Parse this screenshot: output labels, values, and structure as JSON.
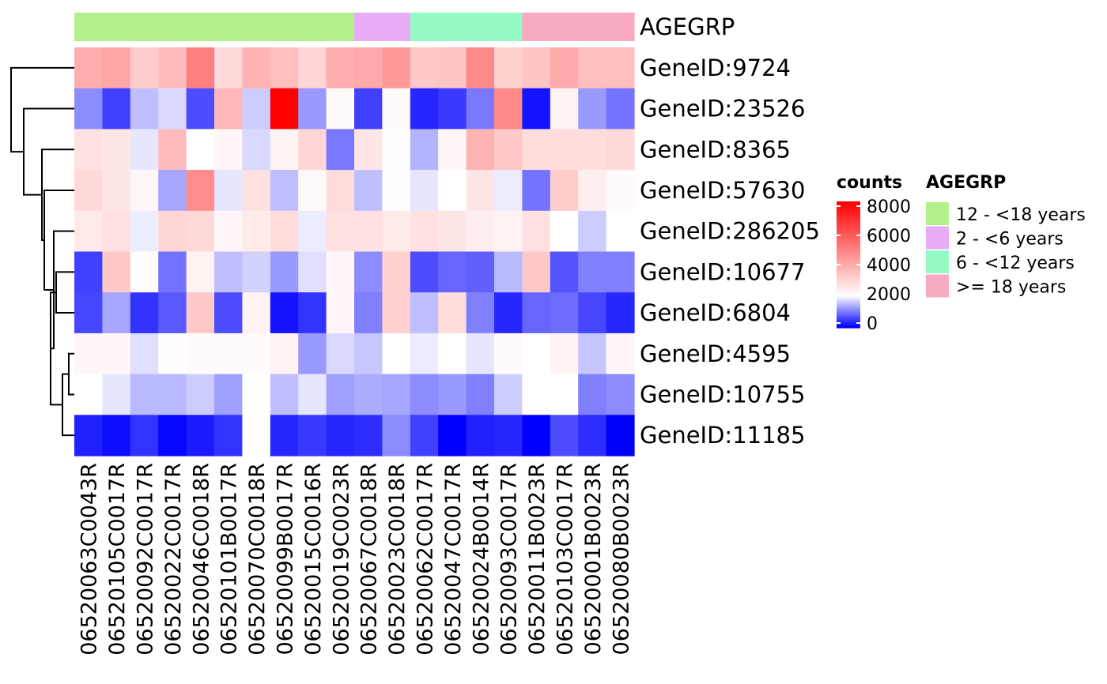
{
  "chart_data": {
    "type": "heatmap",
    "legend_title": "counts",
    "color_scale": {
      "stops": [
        {
          "value": 0,
          "color": "#0000FF"
        },
        {
          "value": 2000,
          "color": "#FFFFFF"
        },
        {
          "value": 8000,
          "color": "#FF0000"
        }
      ],
      "tick_labels": [
        "8000",
        "6000",
        "4000",
        "2000",
        "0"
      ],
      "tick_values": [
        8000,
        6000,
        4000,
        2000,
        0
      ]
    },
    "columns": [
      "06520063C0043R",
      "06520105C0017R",
      "06520092C0017R",
      "06520022C0017R",
      "06520046C0018R",
      "06520101B0017R",
      "06520070C0018R",
      "06520099B0017R",
      "06520015C0016R",
      "06520019C0023R",
      "06520067C0018R",
      "06520023C0018R",
      "06520062C0017R",
      "06520047C0017R",
      "06520024B0014R",
      "06520093C0017R",
      "06520011B0023R",
      "06520103C0017R",
      "06520001B0023R",
      "06520080B0023R"
    ],
    "rows": [
      "GeneID:9724",
      "GeneID:23526",
      "GeneID:8365",
      "GeneID:57630",
      "GeneID:286205",
      "GeneID:10677",
      "GeneID:6804",
      "GeneID:4595",
      "GeneID:10755",
      "GeneID:11185"
    ],
    "values": [
      [
        3900,
        4100,
        3200,
        3600,
        5000,
        2900,
        3800,
        3500,
        3000,
        3900,
        4000,
        4400,
        3300,
        3400,
        4800,
        3100,
        3400,
        4000,
        3500,
        3500
      ],
      [
        1100,
        500,
        1500,
        1700,
        600,
        3700,
        1600,
        8000,
        1200,
        2100,
        500,
        2100,
        300,
        450,
        950,
        4800,
        150,
        2300,
        1200,
        900
      ],
      [
        2700,
        2600,
        1800,
        3600,
        2000,
        2200,
        1700,
        2300,
        3000,
        950,
        2600,
        2050,
        1400,
        2200,
        3800,
        3300,
        2800,
        2800,
        2800,
        2900
      ],
      [
        2900,
        2600,
        2200,
        1300,
        4700,
        1800,
        2700,
        1500,
        2150,
        2800,
        1500,
        2050,
        1800,
        2000,
        2600,
        1850,
        900,
        3200,
        2400,
        2100
      ],
      [
        2500,
        2700,
        1850,
        3000,
        2900,
        2200,
        2500,
        2800,
        1850,
        2700,
        2700,
        2500,
        2700,
        2600,
        2400,
        2300,
        2700,
        2000,
        1600,
        2000
      ],
      [
        500,
        3300,
        2050,
        900,
        2300,
        1500,
        1650,
        1200,
        1750,
        2200,
        1100,
        3100,
        600,
        800,
        750,
        1450,
        3300,
        650,
        1000,
        1000
      ],
      [
        550,
        1300,
        400,
        700,
        3300,
        600,
        2300,
        150,
        400,
        2200,
        1000,
        3100,
        1500,
        2800,
        1000,
        300,
        800,
        850,
        550,
        300
      ],
      [
        2200,
        2200,
        1750,
        2050,
        2100,
        2100,
        2100,
        2300,
        1200,
        1700,
        1550,
        2000,
        1850,
        2000,
        1800,
        2100,
        2000,
        2300,
        1550,
        2200
      ],
      [
        2000,
        1800,
        1450,
        1450,
        1600,
        1250,
        2000,
        1500,
        1800,
        1250,
        1350,
        1300,
        1100,
        1200,
        1000,
        1600,
        2000,
        2000,
        1000,
        1100
      ],
      [
        250,
        100,
        400,
        50,
        200,
        400,
        2000,
        300,
        450,
        300,
        350,
        1100,
        500,
        0,
        250,
        300,
        0,
        600,
        350,
        0
      ]
    ],
    "annotation": {
      "title": "AGEGRP",
      "categories": [
        {
          "label": "12 - <18 years",
          "color": "#B3F08C"
        },
        {
          "label": "2 - <6 years",
          "color": "#E8ACF7"
        },
        {
          "label": "6 - <12 years",
          "color": "#96FAC4"
        },
        {
          "label": ">= 18 years",
          "color": "#F8AAC1"
        }
      ],
      "column_groups": [
        0,
        0,
        0,
        0,
        0,
        0,
        0,
        0,
        0,
        0,
        1,
        1,
        2,
        2,
        2,
        2,
        3,
        3,
        3,
        3
      ]
    }
  }
}
